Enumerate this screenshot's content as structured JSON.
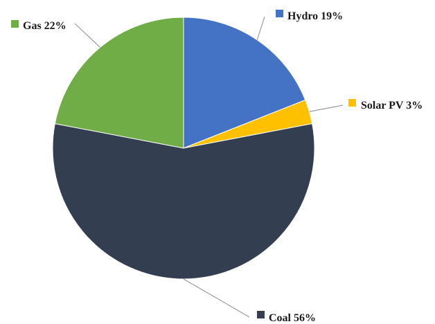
{
  "chart_data": {
    "type": "pie",
    "title": "",
    "slices": [
      {
        "name": "Hydro",
        "value": 19,
        "label": "Hydro 19%",
        "color": "#4472C4"
      },
      {
        "name": "Solar PV",
        "value": 3,
        "label": "Solar PV 3%",
        "color": "#FFC000"
      },
      {
        "name": "Coal",
        "value": 56,
        "label": "Coal 56%",
        "color": "#333F50"
      },
      {
        "name": "Gas",
        "value": 22,
        "label": "Gas 22%",
        "color": "#70AD47"
      }
    ],
    "start_angle_deg": 0,
    "direction": "clockwise",
    "labels": "outside with leader lines and color markers"
  }
}
